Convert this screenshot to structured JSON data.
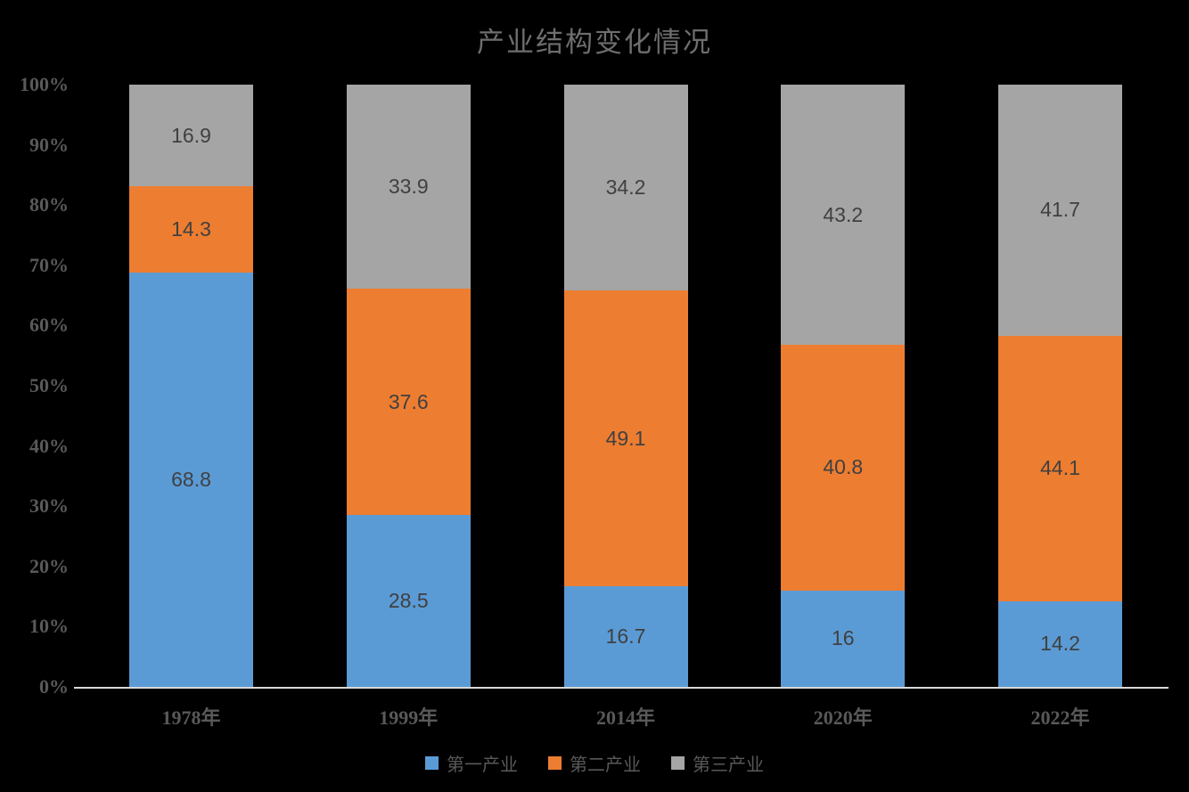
{
  "chart_data": {
    "type": "bar",
    "stacked": true,
    "title": "产业结构变化情况",
    "categories": [
      "1978年",
      "1999年",
      "2014年",
      "2020年",
      "2022年"
    ],
    "series": [
      {
        "name": "第一产业",
        "color": "#5B9BD5",
        "values": [
          68.8,
          28.5,
          16.7,
          16,
          14.2
        ]
      },
      {
        "name": "第二产业",
        "color": "#ED7D31",
        "values": [
          14.3,
          37.6,
          49.1,
          40.8,
          44.1
        ]
      },
      {
        "name": "第三产业",
        "color": "#A5A5A5",
        "values": [
          16.9,
          33.9,
          34.2,
          43.2,
          41.7
        ]
      }
    ],
    "y_ticks": [
      "0%",
      "10%",
      "20%",
      "30%",
      "40%",
      "50%",
      "60%",
      "70%",
      "80%",
      "90%",
      "100%"
    ],
    "ylim": [
      0,
      100
    ],
    "grid": false,
    "legend_position": "bottom",
    "background_color": "#000000",
    "tick_text_color": "#595959",
    "title_color": "#6e6e6e",
    "data_label_color": "#404040",
    "axis_line_color": "#d9d9d9"
  }
}
